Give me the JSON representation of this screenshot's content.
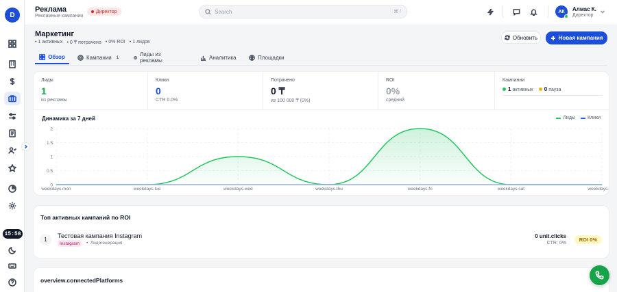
{
  "sidebar": {
    "logo_letter": "D",
    "clock": "15:58"
  },
  "header": {
    "app_title": "Реклама",
    "app_subtitle": "Рекламные кампании",
    "role_badge": "Директор",
    "search_placeholder": "Search",
    "search_shortcut": "⌘ /",
    "user": {
      "initials": "АК",
      "name": "Алмас К.",
      "role": "Директор"
    }
  },
  "page": {
    "title": "Маркетинг",
    "stats": [
      "• 1 активных",
      "• 0 ₸ потрачено",
      "• 0% ROI",
      "• 1 лидов"
    ],
    "refresh_label": "Обновить",
    "new_campaign_label": "Новая кампания"
  },
  "tabs": [
    {
      "label": "Обзор",
      "icon": "grid-icon",
      "active": true
    },
    {
      "label": "Кампании",
      "icon": "target-icon",
      "count": "1"
    },
    {
      "label": "Лиды из рекламы",
      "icon": "target-icon"
    },
    {
      "label": "Аналитика",
      "icon": "bar-chart-icon"
    },
    {
      "label": "Площадки",
      "icon": "globe-icon"
    }
  ],
  "kpis": {
    "leads": {
      "label": "Лиды",
      "value": "1",
      "sub": "из рекламы",
      "color": "#16a34a"
    },
    "clicks": {
      "label": "Клики",
      "value": "0",
      "sub": "CTR 0.0%",
      "color": "#1d4ed8"
    },
    "spent": {
      "label": "Потрачено",
      "value": "0 ₸",
      "sub": "из 100 000 ₸ (0%)",
      "color": "#111827"
    },
    "roi": {
      "label": "ROI",
      "value": "0%",
      "sub": "средний",
      "color": "#9ca3af"
    },
    "campaigns": {
      "label": "Кампании",
      "active_count": "1",
      "active_label": "активных",
      "paused_count": "0",
      "paused_label": "пауза",
      "active_color": "#22c55e",
      "paused_color": "#eab308"
    }
  },
  "chart_data": {
    "type": "area",
    "title": "Динамика за 7 дней",
    "categories": [
      "weekdays.mon",
      "weekdays.tue",
      "weekdays.wed",
      "weekdays.thu",
      "weekdays.fri",
      "weekdays.sat",
      "weekdays.sun"
    ],
    "series": [
      {
        "name": "Лиды",
        "values": [
          0,
          0,
          1,
          0,
          2,
          0,
          0
        ],
        "color": "#22c55e"
      },
      {
        "name": "Клики",
        "values": [
          0,
          0,
          0,
          0,
          0,
          0,
          0
        ],
        "color": "#2563eb"
      }
    ],
    "yticks": [
      "0",
      "0.5",
      "1",
      "1.5",
      "2"
    ],
    "ylim": [
      0,
      2
    ],
    "grid": true,
    "legend": "top-right"
  },
  "top_campaigns": {
    "title": "Топ активных кампаний по ROI",
    "items": [
      {
        "rank": "1",
        "name": "Тестовая кампания Instagram",
        "platform": "Instagram",
        "type": "Лидогенерация",
        "clicks": "0 unit.clicks",
        "ctr": "CTR: 0%",
        "roi": "ROI 0%"
      }
    ]
  },
  "platforms": {
    "title": "overview.connectedPlatforms"
  }
}
